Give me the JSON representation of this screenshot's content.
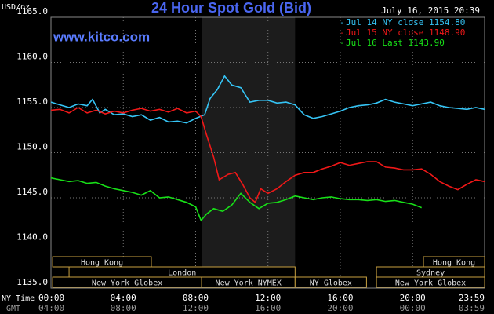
{
  "chart_data": {
    "type": "line",
    "title": "24 Hour Spot Gold (Bid)",
    "timestamp": "July 16, 2015 20:39",
    "watermark": "www.kitco.com",
    "y_unit": "USD/oz",
    "x_row_labels": [
      "NY Time",
      "GMT"
    ],
    "xlim": [
      0,
      23.98
    ],
    "ylim": [
      1135,
      1165
    ],
    "yticks": [
      {
        "value": 1135,
        "label": "1135.0"
      },
      {
        "value": 1140,
        "label": "1140.0"
      },
      {
        "value": 1145,
        "label": "1145.0"
      },
      {
        "value": 1150,
        "label": "1150.0"
      },
      {
        "value": 1155,
        "label": "1155.0"
      },
      {
        "value": 1160,
        "label": "1160.0"
      },
      {
        "value": 1165,
        "label": "1165.0"
      }
    ],
    "xticks": [
      {
        "value": 0,
        "label": "00:00"
      },
      {
        "value": 4,
        "label": "04:00"
      },
      {
        "value": 8,
        "label": "08:00"
      },
      {
        "value": 12,
        "label": "12:00"
      },
      {
        "value": 16,
        "label": "16:00"
      },
      {
        "value": 20,
        "label": "20:00"
      },
      {
        "value": 23.98,
        "label": "23:59"
      }
    ],
    "gmt_labels": [
      "04:00",
      "08:00",
      "12:00",
      "16:00",
      "20:00",
      "00:00",
      "03:59"
    ],
    "grid": true,
    "series": [
      {
        "name": "Jul 14 NY close 1154.80",
        "color": "#35c4f5",
        "x": [
          0,
          0.5,
          1,
          1.5,
          2,
          2.3,
          2.7,
          3,
          3.5,
          4,
          4.5,
          5,
          5.5,
          6,
          6.5,
          7,
          7.5,
          8,
          8.5,
          8.8,
          9.2,
          9.6,
          10,
          10.5,
          11,
          11.5,
          12,
          12.5,
          13,
          13.5,
          14,
          14.5,
          15,
          15.5,
          16,
          16.5,
          17,
          17.5,
          18,
          18.5,
          19,
          19.5,
          20,
          20.5,
          21,
          21.5,
          22,
          22.5,
          23,
          23.5,
          23.98
        ],
        "values": [
          1155.6,
          1155.3,
          1155.0,
          1155.4,
          1155.2,
          1155.9,
          1154.4,
          1154.8,
          1154.2,
          1154.3,
          1154.0,
          1154.2,
          1153.6,
          1153.9,
          1153.4,
          1153.5,
          1153.3,
          1153.8,
          1154.2,
          1156.0,
          1157.0,
          1158.5,
          1157.5,
          1157.2,
          1155.6,
          1155.8,
          1155.8,
          1155.5,
          1155.6,
          1155.3,
          1154.2,
          1153.8,
          1154.0,
          1154.3,
          1154.6,
          1155.0,
          1155.2,
          1155.3,
          1155.5,
          1155.9,
          1155.6,
          1155.4,
          1155.2,
          1155.4,
          1155.6,
          1155.2,
          1155.0,
          1154.9,
          1154.8,
          1155.0,
          1154.8
        ]
      },
      {
        "name": "Jul 15 NY close 1148.90",
        "color": "#f01818",
        "x": [
          0,
          0.5,
          1,
          1.5,
          2,
          2.5,
          3,
          3.5,
          4,
          4.5,
          5,
          5.5,
          6,
          6.5,
          7,
          7.5,
          8,
          8.3,
          8.6,
          9,
          9.3,
          9.8,
          10.2,
          10.6,
          11,
          11.3,
          11.6,
          12,
          12.5,
          13,
          13.5,
          14,
          14.5,
          15,
          15.5,
          16,
          16.5,
          17,
          17.5,
          18,
          18.5,
          19,
          19.5,
          20,
          20.5,
          21,
          21.5,
          22,
          22.5,
          23,
          23.5,
          23.98
        ],
        "values": [
          1154.7,
          1154.8,
          1154.4,
          1155.0,
          1154.4,
          1154.7,
          1154.3,
          1154.6,
          1154.4,
          1154.7,
          1154.9,
          1154.6,
          1154.8,
          1154.5,
          1154.9,
          1154.4,
          1154.6,
          1154.0,
          1152.0,
          1149.5,
          1147.0,
          1147.6,
          1147.8,
          1146.5,
          1145.0,
          1144.5,
          1146.0,
          1145.5,
          1146.0,
          1146.8,
          1147.5,
          1147.8,
          1147.8,
          1148.2,
          1148.5,
          1148.9,
          1148.6,
          1148.8,
          1149.0,
          1149.0,
          1148.4,
          1148.3,
          1148.1,
          1148.1,
          1148.2,
          1147.6,
          1146.8,
          1146.3,
          1145.9,
          1146.5,
          1147.0,
          1146.8
        ]
      },
      {
        "name": "Jul 16 Last 1143.90",
        "color": "#18e018",
        "x": [
          0,
          0.5,
          1,
          1.5,
          2,
          2.5,
          3,
          3.5,
          4,
          4.5,
          5,
          5.5,
          6,
          6.5,
          7,
          7.5,
          8,
          8.3,
          8.6,
          9,
          9.5,
          10,
          10.5,
          11,
          11.5,
          12,
          12.5,
          13,
          13.5,
          14,
          14.5,
          15,
          15.5,
          16,
          16.5,
          17,
          17.5,
          18,
          18.5,
          19,
          19.5,
          20,
          20.5
        ],
        "values": [
          1147.2,
          1147.0,
          1146.8,
          1146.9,
          1146.6,
          1146.7,
          1146.3,
          1146.0,
          1145.8,
          1145.6,
          1145.3,
          1145.8,
          1145.0,
          1145.1,
          1144.8,
          1144.5,
          1144.0,
          1142.5,
          1143.2,
          1143.8,
          1143.5,
          1144.2,
          1145.5,
          1144.5,
          1143.8,
          1144.4,
          1144.5,
          1144.8,
          1145.2,
          1145.0,
          1144.8,
          1145.0,
          1145.1,
          1144.9,
          1144.8,
          1144.8,
          1144.7,
          1144.8,
          1144.6,
          1144.7,
          1144.5,
          1144.3,
          1143.9
        ]
      }
    ],
    "sessions": [
      {
        "label": "Hong Kong",
        "row": 0,
        "start": 0.09,
        "end": 5.55
      },
      {
        "label": "Hong Kong",
        "row": 0,
        "start": 20.6,
        "end": 23.98
      },
      {
        "label": "London",
        "row": 1,
        "start": 1.0,
        "end": 13.5
      },
      {
        "label": "Sydney",
        "row": 1,
        "start": 18.0,
        "end": 23.98
      },
      {
        "label": "New York Globex",
        "row": 2,
        "start": 0.09,
        "end": 8.33
      },
      {
        "label": "New York NYMEX",
        "row": 2,
        "start": 8.33,
        "end": 13.5,
        "shaded": true
      },
      {
        "label": "NY Globex",
        "row": 2,
        "start": 13.5,
        "end": 17.45
      },
      {
        "label": "New York Globex",
        "row": 2,
        "start": 18.0,
        "end": 23.98
      }
    ]
  }
}
